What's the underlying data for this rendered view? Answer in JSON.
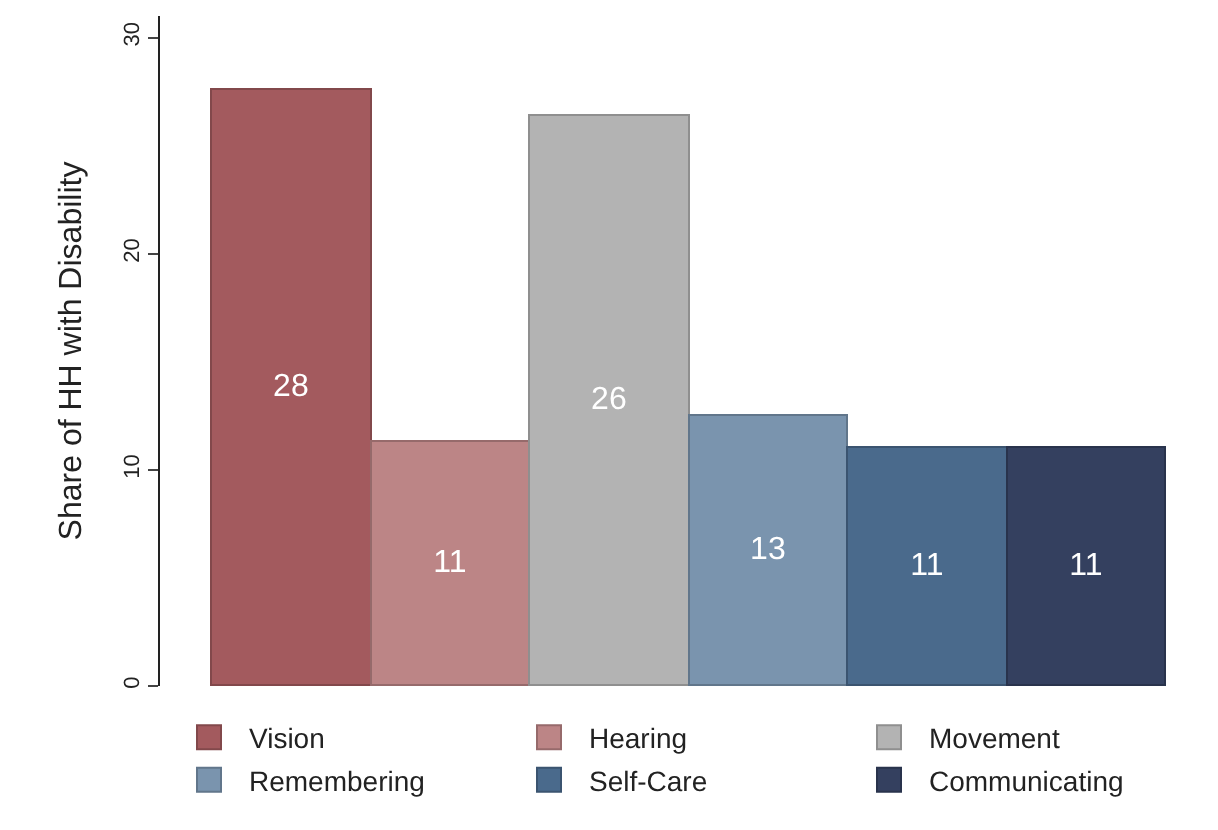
{
  "chart_data": {
    "type": "bar",
    "ylabel": "Share of HH with Disability",
    "categories": [
      null
    ],
    "series": [
      {
        "name": "Vision",
        "color": "#a35a5e",
        "values": [
          27.6
        ],
        "value_labels": [
          "28"
        ]
      },
      {
        "name": "Hearing",
        "color": "#bc8586",
        "values": [
          11.3
        ],
        "value_labels": [
          "11"
        ]
      },
      {
        "name": "Movement",
        "color": "#b3b3b3",
        "values": [
          26.4
        ],
        "value_labels": [
          "26"
        ]
      },
      {
        "name": "Remembering",
        "color": "#7a94ae",
        "values": [
          12.5
        ],
        "value_labels": [
          "13"
        ]
      },
      {
        "name": "Self-Care",
        "color": "#4a6a8c",
        "values": [
          11.0
        ],
        "value_labels": [
          "11"
        ]
      },
      {
        "name": "Communicating",
        "color": "#34405f",
        "values": [
          11.0
        ],
        "value_labels": [
          "11"
        ]
      }
    ],
    "ylim": [
      0,
      31
    ],
    "yticks": [
      0,
      10,
      20,
      30
    ],
    "legend": "bottom",
    "tick_labels": "y"
  }
}
